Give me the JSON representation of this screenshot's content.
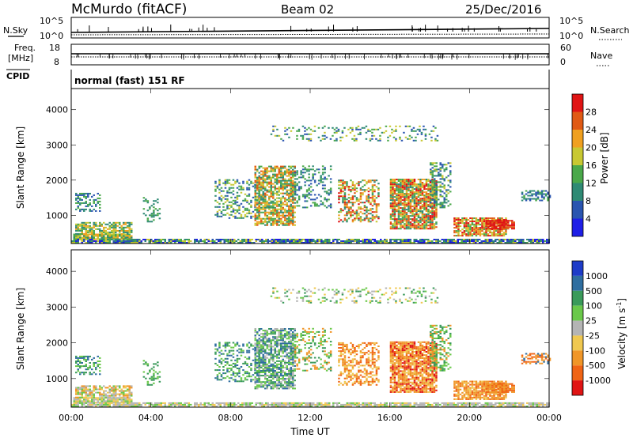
{
  "header": {
    "station": "McMurdo (fitACF)",
    "beam": "Beam 02",
    "date": "25/Dec/2016"
  },
  "top_panels": {
    "nsky_label": "N.Sky",
    "nsearch_label": "N.Search",
    "nsky_ticks": [
      "10^5",
      "10^0"
    ],
    "nsearch_ticks": [
      "10^5",
      "10^0"
    ],
    "freq_label_1": "Freq.",
    "freq_label_2": "[MHz]",
    "freq_ticks": [
      "18",
      "8"
    ],
    "nave_label": "Nave",
    "nave_ticks": [
      "60",
      "0"
    ],
    "cpid_label": "CPID",
    "cpid_text": "normal (fast) 151 RF"
  },
  "chart_data": [
    {
      "type": "heatmap",
      "name": "power",
      "ylabel": "Slant Range [km]",
      "ylim": [
        200,
        4600
      ],
      "yticks": [
        1000,
        2000,
        3000,
        4000
      ],
      "xticks": [
        "00:00",
        "04:00",
        "08:00",
        "12:00",
        "16:00",
        "20:00",
        "00:00"
      ],
      "colorbar_label": "Power [dB]",
      "colorbar_ticks": [
        "4",
        "8",
        "12",
        "16",
        "20",
        "24",
        "28"
      ],
      "colors": [
        "#1e1ee6",
        "#2a55b0",
        "#2f8a74",
        "#4aa84a",
        "#c8c832",
        "#f0a020",
        "#e05a14",
        "#e01414"
      ]
    },
    {
      "type": "heatmap",
      "name": "velocity",
      "ylabel": "Slant Range [km]",
      "ylim": [
        200,
        4600
      ],
      "yticks": [
        1000,
        2000,
        3000,
        4000
      ],
      "xticks": [
        "00:00",
        "04:00",
        "08:00",
        "12:00",
        "16:00",
        "20:00",
        "00:00"
      ],
      "xlabel": "Time UT",
      "colorbar_label": "Velocity [m s",
      "colorbar_exp": "-1",
      "colorbar_label_end": "]",
      "colorbar_ticks": [
        "1000",
        "500",
        "100",
        "25",
        "-25",
        "-100",
        "-500",
        "-1000"
      ],
      "colors": [
        "#1e3cc8",
        "#2f6ea0",
        "#3a9a5a",
        "#6ac84a",
        "#b4b4b4",
        "#f0c850",
        "#f09628",
        "#f06414",
        "#e01414"
      ]
    }
  ]
}
